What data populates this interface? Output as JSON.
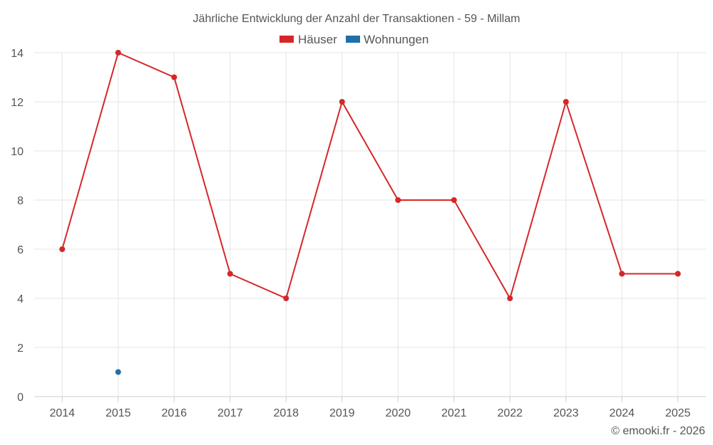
{
  "chart_data": {
    "type": "line",
    "title": "Jährliche Entwicklung der Anzahl der Transaktionen - 59 - Millam",
    "xlabel": "",
    "ylabel": "",
    "categories": [
      "2014",
      "2015",
      "2016",
      "2017",
      "2018",
      "2019",
      "2020",
      "2021",
      "2022",
      "2023",
      "2024",
      "2025"
    ],
    "series": [
      {
        "name": "Häuser",
        "color": "#d62728",
        "values": [
          6,
          14,
          13,
          5,
          4,
          12,
          8,
          8,
          4,
          12,
          5,
          5
        ]
      },
      {
        "name": "Wohnungen",
        "color": "#1f6fa8",
        "values": [
          null,
          1,
          null,
          null,
          null,
          null,
          null,
          null,
          null,
          null,
          null,
          null
        ]
      }
    ],
    "ylim": [
      0,
      14
    ],
    "yticks": [
      0,
      2,
      4,
      6,
      8,
      10,
      12,
      14
    ],
    "grid": true,
    "legend_position": "top-center"
  },
  "credit": "© emooki.fr - 2026"
}
